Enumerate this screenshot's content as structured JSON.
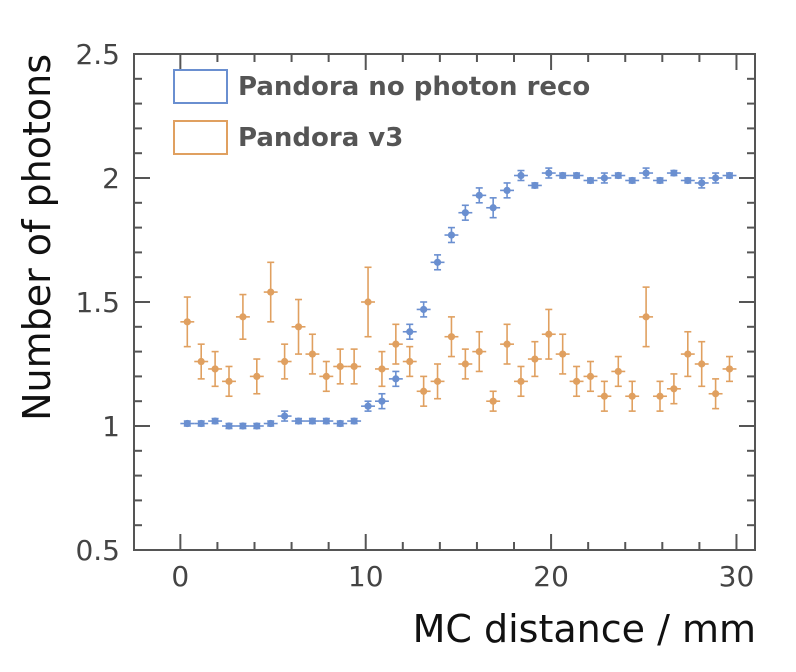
{
  "chart_data": {
    "type": "scatter",
    "xlabel": "MC distance / mm",
    "ylabel": "Number of photons",
    "xlim": [
      -2.5,
      31
    ],
    "ylim": [
      0.5,
      2.5
    ],
    "x_ticks": [
      0,
      10,
      20,
      30
    ],
    "x_tick_labels": [
      "0",
      "10",
      "20",
      "30"
    ],
    "y_ticks": [
      0.5,
      1,
      1.5,
      2,
      2.5
    ],
    "y_tick_labels": [
      "0.5",
      "1",
      "1.5",
      "2",
      "2.5"
    ],
    "x_minor_step": 2,
    "y_minor_step": 0.1,
    "bin_width": 0.75,
    "legend_position": "top-left",
    "grid": false,
    "series": [
      {
        "name": "Pandora no photon reco",
        "color": "#6a8fd0",
        "x": [
          0.375,
          1.125,
          1.875,
          2.625,
          3.375,
          4.125,
          4.875,
          5.625,
          6.375,
          7.125,
          7.875,
          8.625,
          9.375,
          10.125,
          10.875,
          11.625,
          12.375,
          13.125,
          13.875,
          14.625,
          15.375,
          16.125,
          16.875,
          17.625,
          18.375,
          19.125,
          19.875,
          20.625,
          21.375,
          22.125,
          22.875,
          23.625,
          24.375,
          25.125,
          25.875,
          26.625,
          27.375,
          28.125,
          28.875,
          29.625
        ],
        "y": [
          1.01,
          1.01,
          1.02,
          1.0,
          1.0,
          1.0,
          1.01,
          1.04,
          1.02,
          1.02,
          1.02,
          1.01,
          1.02,
          1.08,
          1.1,
          1.19,
          1.38,
          1.47,
          1.66,
          1.77,
          1.86,
          1.93,
          1.88,
          1.95,
          2.01,
          1.97,
          2.02,
          2.01,
          2.01,
          1.99,
          2.0,
          2.01,
          1.99,
          2.02,
          1.99,
          2.02,
          1.99,
          1.98,
          2.0,
          2.01
        ],
        "err": [
          0.01,
          0.01,
          0.01,
          0.01,
          0.01,
          0.01,
          0.01,
          0.02,
          0.01,
          0.01,
          0.01,
          0.01,
          0.01,
          0.02,
          0.03,
          0.03,
          0.03,
          0.03,
          0.03,
          0.03,
          0.03,
          0.03,
          0.04,
          0.03,
          0.02,
          0.01,
          0.02,
          0.01,
          0.01,
          0.01,
          0.02,
          0.01,
          0.01,
          0.02,
          0.01,
          0.01,
          0.01,
          0.02,
          0.02,
          0.01
        ]
      },
      {
        "name": "Pandora v3",
        "color": "#e0a060",
        "x": [
          0.375,
          1.125,
          1.875,
          2.625,
          3.375,
          4.125,
          4.875,
          5.625,
          6.375,
          7.125,
          7.875,
          8.625,
          9.375,
          10.125,
          10.875,
          11.625,
          12.375,
          13.125,
          13.875,
          14.625,
          15.375,
          16.125,
          16.875,
          17.625,
          18.375,
          19.125,
          19.875,
          20.625,
          21.375,
          22.125,
          22.875,
          23.625,
          24.375,
          25.125,
          25.875,
          26.625,
          27.375,
          28.125,
          28.875,
          29.625
        ],
        "y": [
          1.42,
          1.26,
          1.23,
          1.18,
          1.44,
          1.2,
          1.54,
          1.26,
          1.4,
          1.29,
          1.2,
          1.24,
          1.24,
          1.5,
          1.23,
          1.33,
          1.26,
          1.14,
          1.18,
          1.36,
          1.25,
          1.3,
          1.1,
          1.33,
          1.18,
          1.27,
          1.37,
          1.29,
          1.18,
          1.2,
          1.12,
          1.22,
          1.12,
          1.44,
          1.12,
          1.15,
          1.29,
          1.25,
          1.13,
          1.23
        ],
        "err": [
          0.1,
          0.07,
          0.07,
          0.06,
          0.09,
          0.07,
          0.12,
          0.07,
          0.11,
          0.08,
          0.06,
          0.07,
          0.07,
          0.14,
          0.07,
          0.08,
          0.06,
          0.06,
          0.07,
          0.08,
          0.06,
          0.08,
          0.04,
          0.08,
          0.06,
          0.07,
          0.1,
          0.08,
          0.06,
          0.06,
          0.06,
          0.06,
          0.06,
          0.12,
          0.06,
          0.06,
          0.09,
          0.09,
          0.06,
          0.05
        ]
      }
    ]
  }
}
